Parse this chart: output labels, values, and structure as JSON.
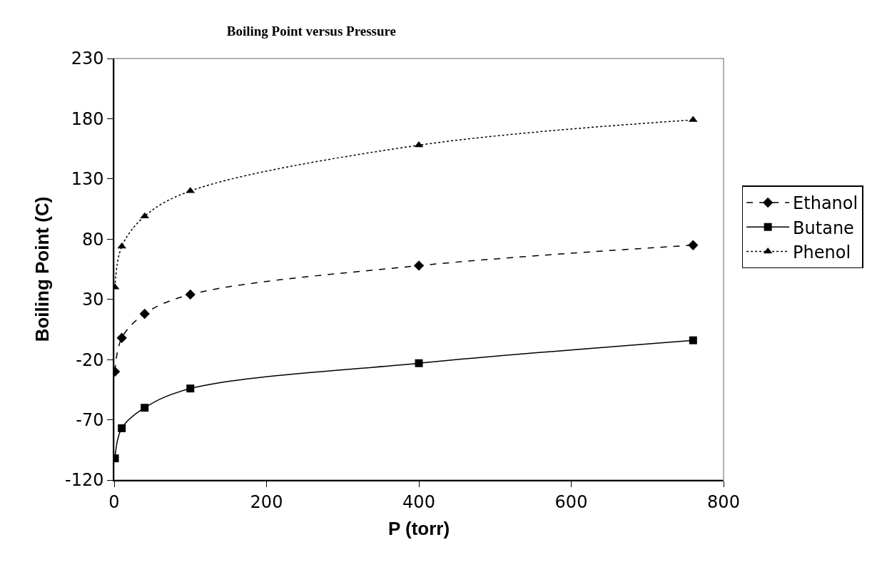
{
  "chart_data": {
    "type": "line",
    "title": "Boiling Point versus Pressure",
    "xlabel": "P (torr)",
    "ylabel": "Boiling Point (C)",
    "x": [
      1,
      10,
      40,
      100,
      400,
      760
    ],
    "series": [
      {
        "name": "Ethanol",
        "color": "#000000",
        "values": [
          -30,
          -2,
          18,
          34,
          58,
          75
        ],
        "marker": "diamond",
        "line_style": "dashed"
      },
      {
        "name": "Butane",
        "color": "#000000",
        "values": [
          -102,
          -77,
          -60,
          -44,
          -23,
          -4
        ],
        "marker": "square",
        "line_style": "solid"
      },
      {
        "name": "Phenol",
        "color": "#000000",
        "values": [
          40,
          74,
          99,
          120,
          158,
          179
        ],
        "marker": "triangle",
        "line_style": "dotted"
      }
    ],
    "xlim": [
      0,
      800
    ],
    "xticks": [
      0,
      200,
      400,
      600,
      800
    ],
    "ylim": [
      -120,
      230
    ],
    "yticks": [
      -120,
      -70,
      -20,
      30,
      80,
      130,
      180,
      230
    ],
    "grid": false,
    "legend": "right"
  }
}
